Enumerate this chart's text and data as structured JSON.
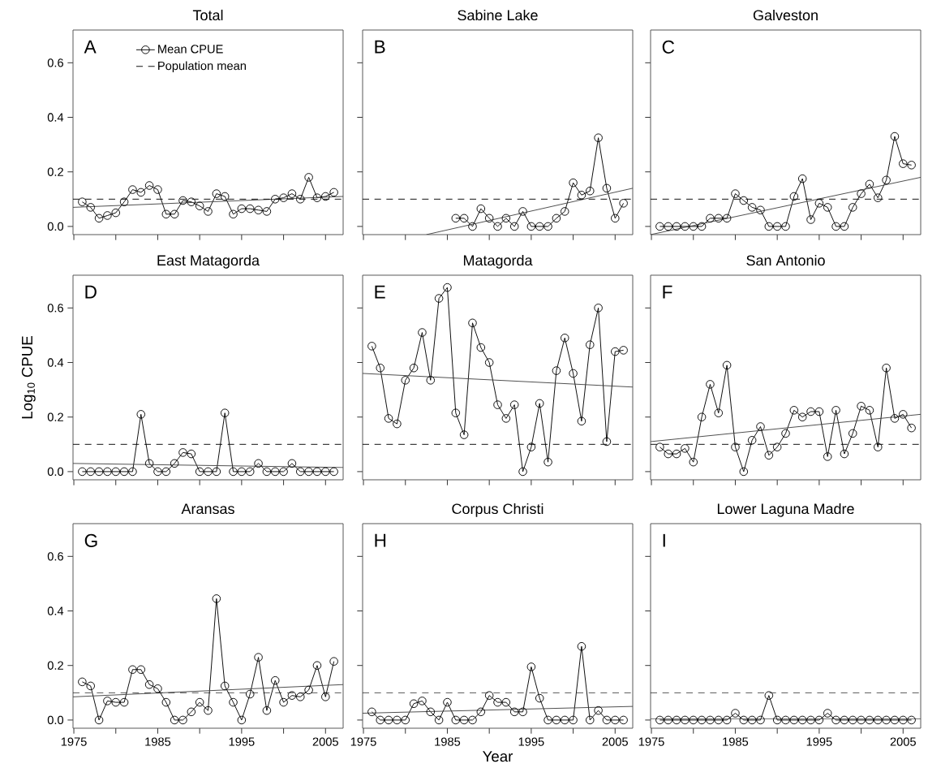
{
  "chart_data": [
    {
      "type": "line",
      "title": "Total",
      "annotations": [
        "A"
      ],
      "marker": "circle",
      "legend": "top",
      "tick_labels": "y",
      "x": [
        1976,
        1977,
        1978,
        1979,
        1980,
        1981,
        1982,
        1983,
        1984,
        1985,
        1986,
        1987,
        1988,
        1989,
        1990,
        1991,
        1992,
        1993,
        1994,
        1995,
        1996,
        1997,
        1998,
        1999,
        2000,
        2001,
        2002,
        2003,
        2004,
        2005,
        2006
      ],
      "series": [
        {
          "name": "Mean CPUE",
          "color": "#000000",
          "values": [
            0.09,
            0.07,
            0.03,
            0.04,
            0.05,
            0.09,
            0.135,
            0.125,
            0.15,
            0.135,
            0.045,
            0.045,
            0.095,
            0.09,
            0.075,
            0.055,
            0.12,
            0.11,
            0.045,
            0.065,
            0.065,
            0.06,
            0.055,
            0.1,
            0.105,
            0.12,
            0.1,
            0.18,
            0.105,
            0.11,
            0.125
          ]
        },
        {
          "type": "line",
          "marker": "none",
          "color": "#444444",
          "x": [
            1974.9,
            2007.1
          ],
          "values": [
            0.07,
            0.11
          ]
        }
      ],
      "ref_lines": [
        {
          "axis": "y",
          "value": 0.1,
          "label": "Population mean",
          "line_style": "dashed"
        }
      ],
      "xlim": [
        1974.9,
        2007.1
      ],
      "ylim": [
        -0.03,
        0.72
      ],
      "xticks": [
        {
          "value": 1975,
          "label": null
        },
        {
          "value": 1980,
          "label": null
        },
        {
          "value": 1985,
          "label": null
        },
        {
          "value": 1990,
          "label": null
        },
        {
          "value": 1995,
          "label": null
        },
        {
          "value": 2000,
          "label": null
        },
        {
          "value": 2005,
          "label": null
        }
      ],
      "yticks": [
        {
          "value": 0,
          "label": "0.0"
        },
        {
          "value": 0.2,
          "label": "0.2"
        },
        {
          "value": 0.4,
          "label": "0.4"
        },
        {
          "value": 0.6,
          "label": "0.6"
        }
      ]
    },
    {
      "type": "line",
      "title": "Sabine Lake",
      "annotations": [
        "B"
      ],
      "marker": "circle",
      "tick_labels": false,
      "x": [
        1986,
        1987,
        1988,
        1989,
        1990,
        1991,
        1992,
        1993,
        1994,
        1995,
        1996,
        1997,
        1998,
        1999,
        2000,
        2001,
        2002,
        2003,
        2004,
        2005,
        2006
      ],
      "series": [
        {
          "color": "#000000",
          "values": [
            0.03,
            0.03,
            0,
            0.065,
            0.03,
            0,
            0.03,
            0,
            0.055,
            0,
            0,
            0,
            0.03,
            0.055,
            0.16,
            0.115,
            0.13,
            0.325,
            0.14,
            0.03,
            0.085
          ]
        },
        {
          "type": "line",
          "marker": "none",
          "color": "#444444",
          "x": [
            1982.5,
            2007.1
          ],
          "values": [
            -0.03,
            0.14
          ]
        }
      ],
      "ref_lines": [
        {
          "axis": "y",
          "value": 0.1,
          "line_style": "dashed"
        }
      ],
      "xlim": [
        1974.9,
        2007.1
      ],
      "ylim": [
        -0.03,
        0.72
      ],
      "xticks": [
        {
          "value": 1975,
          "label": null
        },
        {
          "value": 1980,
          "label": null
        },
        {
          "value": 1985,
          "label": null
        },
        {
          "value": 1990,
          "label": null
        },
        {
          "value": 1995,
          "label": null
        },
        {
          "value": 2000,
          "label": null
        },
        {
          "value": 2005,
          "label": null
        }
      ],
      "yticks": [
        {
          "value": 0,
          "label": null
        },
        {
          "value": 0.2,
          "label": null
        },
        {
          "value": 0.4,
          "label": null
        },
        {
          "value": 0.6,
          "label": null
        }
      ]
    },
    {
      "type": "line",
      "title": "Galveston",
      "annotations": [
        "C"
      ],
      "marker": "circle",
      "tick_labels": false,
      "x": [
        1976,
        1977,
        1978,
        1979,
        1980,
        1981,
        1982,
        1983,
        1984,
        1985,
        1986,
        1987,
        1988,
        1989,
        1990,
        1991,
        1992,
        1993,
        1994,
        1995,
        1996,
        1997,
        1998,
        1999,
        2000,
        2001,
        2002,
        2003,
        2004,
        2005,
        2006
      ],
      "series": [
        {
          "color": "#000000",
          "values": [
            0,
            0,
            0,
            0,
            0,
            0,
            0.03,
            0.03,
            0.03,
            0.12,
            0.095,
            0.07,
            0.06,
            0,
            0,
            0,
            0.11,
            0.175,
            0.025,
            0.085,
            0.07,
            0,
            0,
            0.07,
            0.12,
            0.155,
            0.105,
            0.17,
            0.33,
            0.23,
            0.225
          ]
        },
        {
          "type": "line",
          "marker": "none",
          "color": "#444444",
          "x": [
            1974.9,
            2007.1
          ],
          "values": [
            -0.03,
            0.18
          ]
        }
      ],
      "ref_lines": [
        {
          "axis": "y",
          "value": 0.1,
          "line_style": "dashed"
        }
      ],
      "xlim": [
        1974.9,
        2007.1
      ],
      "ylim": [
        -0.03,
        0.72
      ],
      "xticks": [
        {
          "value": 1975,
          "label": null
        },
        {
          "value": 1980,
          "label": null
        },
        {
          "value": 1985,
          "label": null
        },
        {
          "value": 1990,
          "label": null
        },
        {
          "value": 1995,
          "label": null
        },
        {
          "value": 2000,
          "label": null
        },
        {
          "value": 2005,
          "label": null
        }
      ],
      "yticks": [
        {
          "value": 0,
          "label": null
        },
        {
          "value": 0.2,
          "label": null
        },
        {
          "value": 0.4,
          "label": null
        },
        {
          "value": 0.6,
          "label": null
        }
      ]
    },
    {
      "type": "line",
      "title": "East Matagorda",
      "annotations": [
        "D"
      ],
      "ylabel": "Log$_{10}$ CPUE",
      "marker": "circle",
      "tick_labels": "y",
      "x": [
        1976,
        1977,
        1978,
        1979,
        1980,
        1981,
        1982,
        1983,
        1984,
        1985,
        1986,
        1987,
        1988,
        1989,
        1990,
        1991,
        1992,
        1993,
        1994,
        1995,
        1996,
        1997,
        1998,
        1999,
        2000,
        2001,
        2002,
        2003,
        2004,
        2005,
        2006
      ],
      "series": [
        {
          "color": "#000000",
          "values": [
            0,
            0,
            0,
            0,
            0,
            0,
            0,
            0.21,
            0.03,
            0,
            0,
            0.03,
            0.07,
            0.065,
            0,
            0,
            0,
            0.215,
            0,
            0,
            0,
            0.03,
            0,
            0,
            0,
            0.03,
            0,
            0,
            0,
            0,
            0
          ]
        },
        {
          "type": "line",
          "marker": "none",
          "color": "#444444",
          "x": [
            1974.9,
            2007.1
          ],
          "values": [
            0.03,
            0.015
          ]
        }
      ],
      "ref_lines": [
        {
          "axis": "y",
          "value": 0.1,
          "line_style": "dashed"
        }
      ],
      "xlim": [
        1974.9,
        2007.1
      ],
      "ylim": [
        -0.03,
        0.72
      ],
      "xticks": [
        {
          "value": 1975,
          "label": null
        },
        {
          "value": 1980,
          "label": null
        },
        {
          "value": 1985,
          "label": null
        },
        {
          "value": 1990,
          "label": null
        },
        {
          "value": 1995,
          "label": null
        },
        {
          "value": 2000,
          "label": null
        },
        {
          "value": 2005,
          "label": null
        }
      ],
      "yticks": [
        {
          "value": 0,
          "label": "0.0"
        },
        {
          "value": 0.2,
          "label": "0.2"
        },
        {
          "value": 0.4,
          "label": "0.4"
        },
        {
          "value": 0.6,
          "label": "0.6"
        }
      ]
    },
    {
      "type": "line",
      "title": "Matagorda",
      "annotations": [
        "E"
      ],
      "marker": "circle",
      "tick_labels": false,
      "x": [
        1976,
        1977,
        1978,
        1979,
        1980,
        1981,
        1982,
        1983,
        1984,
        1985,
        1986,
        1987,
        1988,
        1989,
        1990,
        1991,
        1992,
        1993,
        1994,
        1995,
        1996,
        1997,
        1998,
        1999,
        2000,
        2001,
        2002,
        2003,
        2004,
        2005,
        2006
      ],
      "series": [
        {
          "color": "#000000",
          "values": [
            0.46,
            0.38,
            0.195,
            0.175,
            0.335,
            0.38,
            0.51,
            0.335,
            0.635,
            0.675,
            0.215,
            0.135,
            0.545,
            0.455,
            0.4,
            0.245,
            0.195,
            0.245,
            0,
            0.09,
            0.25,
            0.035,
            0.37,
            0.49,
            0.36,
            0.185,
            0.465,
            0.6,
            0.11,
            0.44,
            0.445
          ]
        },
        {
          "type": "line",
          "marker": "none",
          "color": "#444444",
          "x": [
            1974.9,
            2007.1
          ],
          "values": [
            0.36,
            0.31
          ]
        }
      ],
      "ref_lines": [
        {
          "axis": "y",
          "value": 0.1,
          "line_style": "dashed"
        }
      ],
      "xlim": [
        1974.9,
        2007.1
      ],
      "ylim": [
        -0.03,
        0.72
      ],
      "xticks": [
        {
          "value": 1975,
          "label": null
        },
        {
          "value": 1980,
          "label": null
        },
        {
          "value": 1985,
          "label": null
        },
        {
          "value": 1990,
          "label": null
        },
        {
          "value": 1995,
          "label": null
        },
        {
          "value": 2000,
          "label": null
        },
        {
          "value": 2005,
          "label": null
        }
      ],
      "yticks": [
        {
          "value": 0,
          "label": null
        },
        {
          "value": 0.2,
          "label": null
        },
        {
          "value": 0.4,
          "label": null
        },
        {
          "value": 0.6,
          "label": null
        }
      ]
    },
    {
      "type": "line",
      "title": "San Antonio",
      "annotations": [
        "F"
      ],
      "marker": "circle",
      "tick_labels": false,
      "x": [
        1976,
        1977,
        1978,
        1979,
        1980,
        1981,
        1982,
        1983,
        1984,
        1985,
        1986,
        1987,
        1988,
        1989,
        1990,
        1991,
        1992,
        1993,
        1994,
        1995,
        1996,
        1997,
        1998,
        1999,
        2000,
        2001,
        2002,
        2003,
        2004,
        2005,
        2006
      ],
      "series": [
        {
          "color": "#000000",
          "values": [
            0.09,
            0.065,
            0.065,
            0.085,
            0.035,
            0.2,
            0.32,
            0.215,
            0.39,
            0.09,
            0,
            0.115,
            0.165,
            0.06,
            0.09,
            0.14,
            0.225,
            0.2,
            0.22,
            0.22,
            0.055,
            0.225,
            0.065,
            0.14,
            0.24,
            0.225,
            0.09,
            0.38,
            0.195,
            0.21,
            0.16
          ]
        },
        {
          "type": "line",
          "marker": "none",
          "color": "#444444",
          "x": [
            1974.9,
            2007.1
          ],
          "values": [
            0.11,
            0.21
          ]
        }
      ],
      "ref_lines": [
        {
          "axis": "y",
          "value": 0.1,
          "line_style": "dashed"
        }
      ],
      "xlim": [
        1974.9,
        2007.1
      ],
      "ylim": [
        -0.03,
        0.72
      ],
      "xticks": [
        {
          "value": 1975,
          "label": null
        },
        {
          "value": 1980,
          "label": null
        },
        {
          "value": 1985,
          "label": null
        },
        {
          "value": 1990,
          "label": null
        },
        {
          "value": 1995,
          "label": null
        },
        {
          "value": 2000,
          "label": null
        },
        {
          "value": 2005,
          "label": null
        }
      ],
      "yticks": [
        {
          "value": 0,
          "label": null
        },
        {
          "value": 0.2,
          "label": null
        },
        {
          "value": 0.4,
          "label": null
        },
        {
          "value": 0.6,
          "label": null
        }
      ]
    },
    {
      "type": "line",
      "title": "Aransas",
      "annotations": [
        "G"
      ],
      "marker": "circle",
      "x": [
        1976,
        1977,
        1978,
        1979,
        1980,
        1981,
        1982,
        1983,
        1984,
        1985,
        1986,
        1987,
        1988,
        1989,
        1990,
        1991,
        1992,
        1993,
        1994,
        1995,
        1996,
        1997,
        1998,
        1999,
        2000,
        2001,
        2002,
        2003,
        2004,
        2005,
        2006
      ],
      "series": [
        {
          "color": "#000000",
          "values": [
            0.14,
            0.125,
            0,
            0.07,
            0.065,
            0.065,
            0.185,
            0.185,
            0.13,
            0.115,
            0.065,
            0,
            0,
            0.03,
            0.065,
            0.035,
            0.445,
            0.125,
            0.065,
            0,
            0.095,
            0.23,
            0.035,
            0.145,
            0.065,
            0.09,
            0.085,
            0.11,
            0.2,
            0.085,
            0.215
          ]
        },
        {
          "type": "line",
          "marker": "none",
          "color": "#444444",
          "x": [
            1974.9,
            2007.1
          ],
          "values": [
            0.085,
            0.13
          ]
        }
      ],
      "ref_lines": [
        {
          "axis": "y",
          "value": 0.1,
          "line_style": "dashed"
        }
      ],
      "xlim": [
        1974.9,
        2007.1
      ],
      "ylim": [
        -0.03,
        0.72
      ],
      "xticks": [
        1975,
        {
          "value": 1980,
          "label": null
        },
        1985,
        {
          "value": 1990,
          "label": null
        },
        1995,
        {
          "value": 2000,
          "label": null
        },
        2005
      ],
      "yticks": [
        {
          "value": 0,
          "label": "0.0"
        },
        {
          "value": 0.2,
          "label": "0.2"
        },
        {
          "value": 0.4,
          "label": "0.4"
        },
        {
          "value": 0.6,
          "label": "0.6"
        }
      ]
    },
    {
      "type": "line",
      "title": "Corpus Christi",
      "annotations": [
        "H"
      ],
      "xlabel": "Year",
      "marker": "circle",
      "tick_labels": "x",
      "x": [
        1976,
        1977,
        1978,
        1979,
        1980,
        1981,
        1982,
        1983,
        1984,
        1985,
        1986,
        1987,
        1988,
        1989,
        1990,
        1991,
        1992,
        1993,
        1994,
        1995,
        1996,
        1997,
        1998,
        1999,
        2000,
        2001,
        2002,
        2003,
        2004,
        2005,
        2006
      ],
      "series": [
        {
          "color": "#000000",
          "values": [
            0.03,
            0,
            0,
            0,
            0,
            0.06,
            0.07,
            0.03,
            0,
            0.065,
            0,
            0,
            0,
            0.03,
            0.09,
            0.065,
            0.065,
            0.03,
            0.03,
            0.195,
            0.08,
            0,
            0,
            0,
            0,
            0.27,
            0,
            0.035,
            0,
            0,
            0
          ]
        },
        {
          "type": "line",
          "marker": "none",
          "color": "#444444",
          "x": [
            1974.9,
            2007.1
          ],
          "values": [
            0.025,
            0.05
          ]
        }
      ],
      "ref_lines": [
        {
          "axis": "y",
          "value": 0.1,
          "line_style": "dashed"
        }
      ],
      "xlim": [
        1974.9,
        2007.1
      ],
      "ylim": [
        -0.03,
        0.72
      ],
      "xticks": [
        1975,
        {
          "value": 1980,
          "label": null
        },
        1985,
        {
          "value": 1990,
          "label": null
        },
        1995,
        {
          "value": 2000,
          "label": null
        },
        2005
      ],
      "yticks": [
        {
          "value": 0,
          "label": null
        },
        {
          "value": 0.2,
          "label": null
        },
        {
          "value": 0.4,
          "label": null
        },
        {
          "value": 0.6,
          "label": null
        }
      ]
    },
    {
      "type": "line",
      "title": "Lower Laguna Madre",
      "annotations": [
        "I"
      ],
      "marker": "circle",
      "tick_labels": "x",
      "x": [
        1976,
        1977,
        1978,
        1979,
        1980,
        1981,
        1982,
        1983,
        1984,
        1985,
        1986,
        1987,
        1988,
        1989,
        1990,
        1991,
        1992,
        1993,
        1994,
        1995,
        1996,
        1997,
        1998,
        1999,
        2000,
        2001,
        2002,
        2003,
        2004,
        2005,
        2006
      ],
      "series": [
        {
          "color": "#000000",
          "values": [
            0,
            0,
            0,
            0,
            0,
            0,
            0,
            0,
            0,
            0.025,
            0,
            0,
            0,
            0.09,
            0,
            0,
            0,
            0,
            0,
            0,
            0.025,
            0,
            0,
            0,
            0,
            0,
            0,
            0,
            0,
            0,
            0
          ]
        },
        {
          "type": "line",
          "marker": "none",
          "color": "#444444",
          "x": [
            1974.9,
            2007.1
          ],
          "values": [
            0.005,
            0.005
          ]
        }
      ],
      "ref_lines": [
        {
          "axis": "y",
          "value": 0.1,
          "line_style": "dashed"
        }
      ],
      "xlim": [
        1974.9,
        2007.1
      ],
      "ylim": [
        -0.03,
        0.72
      ],
      "xticks": [
        1975,
        {
          "value": 1980,
          "label": null
        },
        1985,
        {
          "value": 1990,
          "label": null
        },
        1995,
        {
          "value": 2000,
          "label": null
        },
        2005
      ],
      "yticks": [
        {
          "value": 0,
          "label": null
        },
        {
          "value": 0.2,
          "label": null
        },
        {
          "value": 0.4,
          "label": null
        },
        {
          "value": 0.6,
          "label": null
        }
      ]
    }
  ]
}
